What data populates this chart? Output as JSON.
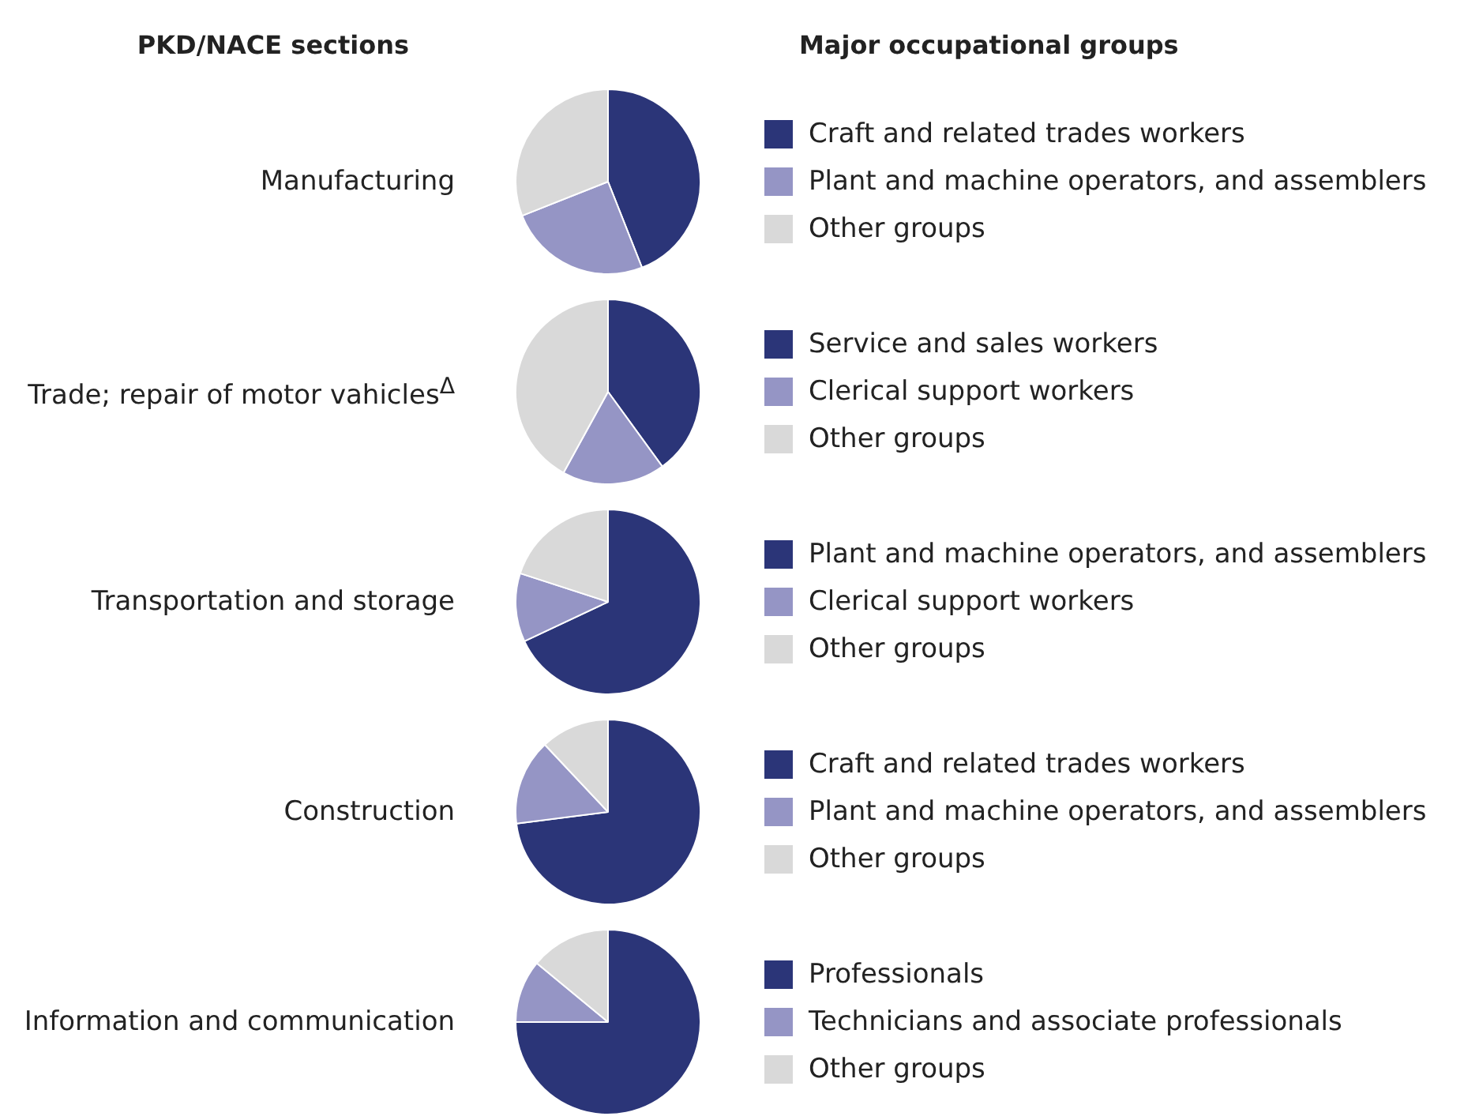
{
  "chart_data": [
    {
      "type": "pie",
      "title": "Manufacturing",
      "legend_title": "Major occupational groups",
      "annotations": [
        "PKD/NACE sections"
      ],
      "legend": "right",
      "categories": [
        "Craft and related trades workers",
        "Plant and machine operators, and assemblers",
        "Other groups"
      ],
      "values": [
        44,
        25,
        31
      ],
      "colors": [
        "#2b3578",
        "#9595c5",
        "#d9d9d9"
      ]
    },
    {
      "type": "pie",
      "title": "Trade; repair of motor vahicles$^{Δ}$",
      "legend": "right",
      "categories": [
        "Service and sales workers",
        "Clerical support workers",
        "Other groups"
      ],
      "values": [
        40,
        18,
        42
      ],
      "colors": [
        "#2b3578",
        "#9595c5",
        "#d9d9d9"
      ]
    },
    {
      "type": "pie",
      "title": "Transportation and storage",
      "legend": "right",
      "categories": [
        "Plant and machine operators, and assemblers",
        "Clerical support workers",
        "Other groups"
      ],
      "values": [
        68,
        12,
        20
      ],
      "colors": [
        "#2b3578",
        "#9595c5",
        "#d9d9d9"
      ]
    },
    {
      "type": "pie",
      "title": "Construction",
      "legend": "right",
      "categories": [
        "Craft and related trades workers",
        "Plant and machine operators, and assemblers",
        "Other groups"
      ],
      "values": [
        73,
        15,
        12
      ],
      "colors": [
        "#2b3578",
        "#9595c5",
        "#d9d9d9"
      ]
    },
    {
      "type": "pie",
      "title": "Information and communication",
      "legend": "right",
      "categories": [
        "Professionals",
        "Technicians and associate professionals",
        "Other groups"
      ],
      "values": [
        75,
        11,
        14
      ],
      "colors": [
        "#2b3578",
        "#9595c5",
        "#d9d9d9"
      ]
    }
  ]
}
